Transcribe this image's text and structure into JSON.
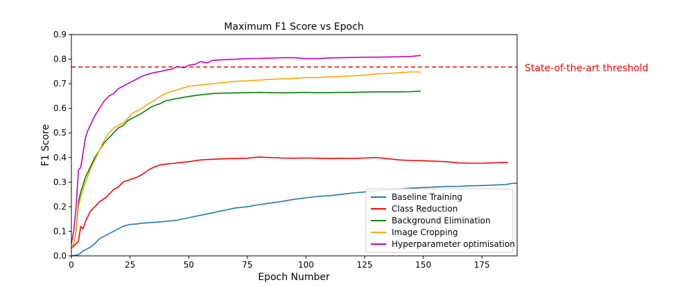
{
  "chart_data": {
    "type": "line",
    "title": "Maximum F1 Score vs Epoch",
    "xlabel": "Epoch Number",
    "ylabel": "F1 Score",
    "xlim": [
      0,
      190
    ],
    "ylim": [
      0,
      0.9
    ],
    "xticks": [
      0,
      25,
      50,
      75,
      100,
      125,
      150,
      175
    ],
    "yticks": [
      0.0,
      0.1,
      0.2,
      0.3,
      0.4,
      0.5,
      0.6,
      0.7,
      0.8,
      0.9
    ],
    "grid": false,
    "legend_position": "lower-right",
    "threshold": {
      "value": 0.768,
      "label": "State-of-the-art threshold",
      "color": "#ff0000",
      "style": "dashed"
    },
    "series": [
      {
        "name": "Baseline Training",
        "color": "#1f77b4",
        "x": [
          0,
          3,
          5,
          8,
          10,
          12,
          15,
          18,
          20,
          22,
          25,
          28,
          30,
          35,
          40,
          45,
          50,
          55,
          60,
          65,
          70,
          75,
          80,
          85,
          90,
          95,
          100,
          105,
          110,
          115,
          120,
          125,
          130,
          135,
          140,
          145,
          150,
          155,
          160,
          165,
          170,
          175,
          180,
          185,
          188,
          190
        ],
        "values": [
          0.0,
          0.005,
          0.02,
          0.035,
          0.05,
          0.07,
          0.085,
          0.1,
          0.11,
          0.12,
          0.128,
          0.13,
          0.133,
          0.136,
          0.14,
          0.145,
          0.155,
          0.165,
          0.175,
          0.185,
          0.195,
          0.2,
          0.208,
          0.215,
          0.222,
          0.23,
          0.236,
          0.242,
          0.245,
          0.25,
          0.256,
          0.26,
          0.264,
          0.268,
          0.272,
          0.276,
          0.278,
          0.28,
          0.282,
          0.283,
          0.285,
          0.286,
          0.288,
          0.29,
          0.295,
          0.295
        ]
      },
      {
        "name": "Class Reduction",
        "color": "#ff0000",
        "x": [
          0,
          2,
          3,
          4,
          5,
          6,
          8,
          10,
          12,
          15,
          18,
          20,
          22,
          25,
          28,
          30,
          33,
          35,
          38,
          40,
          45,
          50,
          55,
          60,
          65,
          70,
          75,
          80,
          85,
          90,
          95,
          100,
          105,
          110,
          115,
          120,
          125,
          130,
          135,
          140,
          145,
          150,
          155,
          160,
          165,
          170,
          175,
          180,
          185,
          186
        ],
        "values": [
          0.03,
          0.05,
          0.06,
          0.12,
          0.11,
          0.14,
          0.18,
          0.2,
          0.22,
          0.24,
          0.27,
          0.28,
          0.3,
          0.31,
          0.32,
          0.33,
          0.35,
          0.36,
          0.37,
          0.373,
          0.378,
          0.383,
          0.39,
          0.393,
          0.395,
          0.396,
          0.397,
          0.402,
          0.4,
          0.398,
          0.397,
          0.398,
          0.397,
          0.396,
          0.397,
          0.396,
          0.398,
          0.4,
          0.395,
          0.39,
          0.388,
          0.387,
          0.385,
          0.383,
          0.378,
          0.377,
          0.377,
          0.378,
          0.38,
          0.38
        ]
      },
      {
        "name": "Background Elimination",
        "color": "#008000",
        "x": [
          0,
          1,
          2,
          3,
          4,
          5,
          6,
          8,
          10,
          12,
          14,
          16,
          18,
          20,
          22,
          24,
          26,
          28,
          30,
          33,
          35,
          38,
          40,
          45,
          50,
          55,
          60,
          65,
          70,
          75,
          80,
          85,
          90,
          95,
          100,
          105,
          110,
          115,
          120,
          125,
          130,
          135,
          140,
          145,
          149
        ],
        "values": [
          0.03,
          0.05,
          0.1,
          0.22,
          0.26,
          0.29,
          0.32,
          0.36,
          0.4,
          0.43,
          0.46,
          0.48,
          0.5,
          0.52,
          0.53,
          0.55,
          0.56,
          0.57,
          0.58,
          0.6,
          0.61,
          0.62,
          0.63,
          0.64,
          0.648,
          0.655,
          0.66,
          0.662,
          0.663,
          0.664,
          0.665,
          0.664,
          0.663,
          0.664,
          0.665,
          0.664,
          0.664,
          0.665,
          0.665,
          0.666,
          0.667,
          0.667,
          0.667,
          0.668,
          0.67
        ]
      },
      {
        "name": "Image Cropping",
        "color": "#ffa500",
        "x": [
          0,
          1,
          2,
          3,
          4,
          5,
          6,
          8,
          10,
          12,
          14,
          16,
          18,
          20,
          22,
          24,
          26,
          28,
          30,
          33,
          35,
          38,
          40,
          45,
          50,
          55,
          60,
          65,
          70,
          75,
          80,
          85,
          90,
          95,
          100,
          105,
          110,
          115,
          120,
          125,
          130,
          135,
          140,
          145,
          149
        ],
        "values": [
          0.03,
          0.05,
          0.1,
          0.2,
          0.24,
          0.27,
          0.3,
          0.35,
          0.39,
          0.43,
          0.47,
          0.5,
          0.52,
          0.53,
          0.54,
          0.56,
          0.58,
          0.59,
          0.6,
          0.62,
          0.63,
          0.65,
          0.66,
          0.675,
          0.69,
          0.695,
          0.7,
          0.705,
          0.71,
          0.712,
          0.715,
          0.718,
          0.72,
          0.722,
          0.725,
          0.725,
          0.728,
          0.73,
          0.732,
          0.735,
          0.74,
          0.742,
          0.745,
          0.748,
          0.748
        ]
      },
      {
        "name": "Hyperparameter optimisation",
        "color": "#bf00bf",
        "x": [
          0,
          1,
          2,
          3,
          4,
          5,
          6,
          7,
          8,
          10,
          12,
          14,
          16,
          18,
          20,
          22,
          24,
          26,
          28,
          30,
          33,
          35,
          38,
          40,
          43,
          45,
          48,
          50,
          53,
          55,
          58,
          60,
          65,
          70,
          75,
          80,
          85,
          90,
          95,
          100,
          105,
          110,
          115,
          120,
          125,
          130,
          135,
          140,
          145,
          149
        ],
        "values": [
          0.05,
          0.1,
          0.2,
          0.35,
          0.36,
          0.42,
          0.48,
          0.51,
          0.53,
          0.57,
          0.6,
          0.63,
          0.65,
          0.66,
          0.68,
          0.69,
          0.7,
          0.71,
          0.72,
          0.73,
          0.74,
          0.745,
          0.75,
          0.755,
          0.76,
          0.77,
          0.765,
          0.775,
          0.78,
          0.79,
          0.785,
          0.795,
          0.798,
          0.8,
          0.802,
          0.803,
          0.804,
          0.806,
          0.806,
          0.802,
          0.802,
          0.805,
          0.806,
          0.807,
          0.808,
          0.808,
          0.809,
          0.81,
          0.811,
          0.815
        ]
      }
    ]
  }
}
